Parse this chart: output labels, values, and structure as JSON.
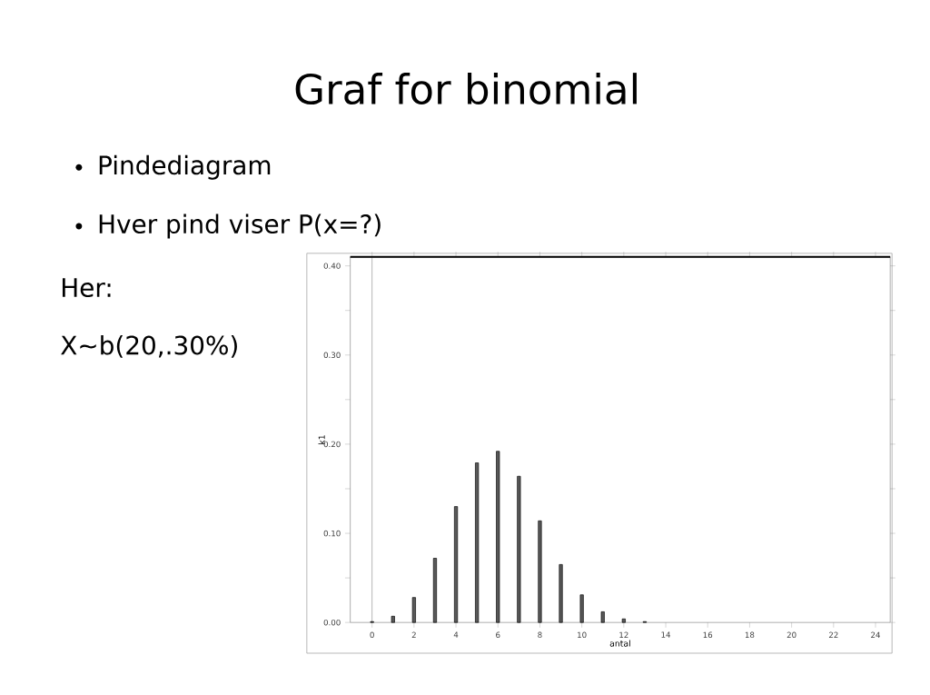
{
  "chart_data": {
    "type": "bar",
    "title": "Graf for binomial",
    "annotations": [
      "Pindediagram",
      "Hver pind viser P(x=?)",
      "Her:",
      "X∼b(20,.30%)"
    ],
    "x": [
      0,
      1,
      2,
      3,
      4,
      5,
      6,
      7,
      8,
      9,
      10,
      11,
      12,
      13
    ],
    "values": [
      0.001,
      0.007,
      0.028,
      0.072,
      0.13,
      0.179,
      0.192,
      0.164,
      0.114,
      0.065,
      0.031,
      0.012,
      0.004,
      0.001
    ],
    "color": "#595959",
    "xlabel": "antal",
    "ylabel": "k1",
    "xlim": [
      -1.04,
      24.7
    ],
    "ylim": [
      0,
      0.41
    ],
    "xticks": [
      0,
      2,
      4,
      6,
      8,
      10,
      12,
      14,
      16,
      18,
      20,
      22,
      24
    ],
    "yticks": [
      {
        "value": 0,
        "label": "0.00"
      },
      {
        "value": 0.05,
        "label": null
      },
      {
        "value": 0.1,
        "label": "0.10"
      },
      {
        "value": 0.15,
        "label": null
      },
      {
        "value": 0.2,
        "label": "0.20"
      },
      {
        "value": 0.25,
        "label": null
      },
      {
        "value": 0.3,
        "label": "0.30"
      },
      {
        "value": 0.35,
        "label": null
      },
      {
        "value": 0.4,
        "label": "0.40"
      }
    ],
    "ref_lines": [
      {
        "axis": "x",
        "value": 0,
        "color": "#b0b0b0"
      }
    ]
  }
}
